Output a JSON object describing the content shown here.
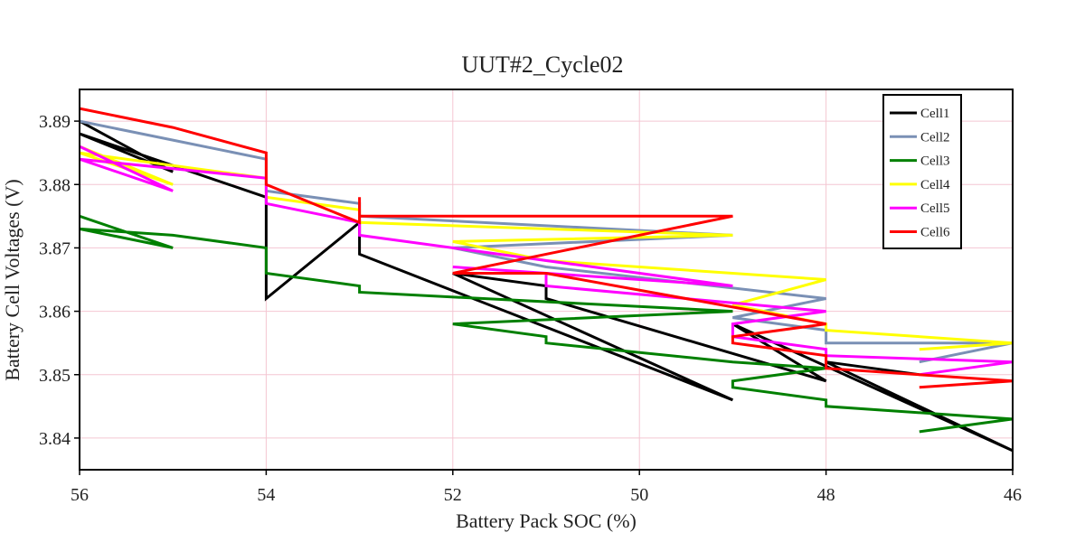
{
  "chart_data": {
    "type": "line",
    "title": "UUT#2_Cycle02",
    "xlabel": "Battery Pack SOC (%)",
    "ylabel": "Battery Cell Voltages (V)",
    "xlim": [
      56,
      46
    ],
    "ylim": [
      3.835,
      3.895
    ],
    "xticks": [
      56,
      54,
      52,
      50,
      48,
      46
    ],
    "yticks": [
      3.84,
      3.85,
      3.86,
      3.87,
      3.88,
      3.89
    ],
    "grid": true,
    "grid_color": "#f4c6d2",
    "legend_position": "top-right",
    "series": [
      {
        "name": "Cell1",
        "color": "#000000",
        "points": [
          [
            56,
            3.89
          ],
          [
            55,
            3.882
          ],
          [
            56,
            3.888
          ],
          [
            54,
            3.878
          ],
          [
            54,
            3.862
          ],
          [
            53,
            3.874
          ],
          [
            53,
            3.869
          ],
          [
            49,
            3.846
          ],
          [
            52,
            3.866
          ],
          [
            51,
            3.864
          ],
          [
            51,
            3.862
          ],
          [
            48,
            3.849
          ],
          [
            49,
            3.858
          ],
          [
            46,
            3.838
          ],
          [
            48,
            3.852
          ],
          [
            47,
            3.85
          ]
        ]
      },
      {
        "name": "Cell2",
        "color": "#7a90b5",
        "points": [
          [
            56,
            3.89
          ],
          [
            55,
            3.887
          ],
          [
            54,
            3.884
          ],
          [
            54,
            3.879
          ],
          [
            53,
            3.877
          ],
          [
            53,
            3.875
          ],
          [
            49,
            3.872
          ],
          [
            52,
            3.87
          ],
          [
            51,
            3.867
          ],
          [
            48,
            3.862
          ],
          [
            49,
            3.859
          ],
          [
            48,
            3.857
          ],
          [
            48,
            3.855
          ],
          [
            46,
            3.855
          ],
          [
            47,
            3.852
          ]
        ]
      },
      {
        "name": "Cell3",
        "color": "#008000",
        "points": [
          [
            56,
            3.875
          ],
          [
            55,
            3.87
          ],
          [
            56,
            3.873
          ],
          [
            55,
            3.872
          ],
          [
            54,
            3.87
          ],
          [
            54,
            3.866
          ],
          [
            53,
            3.864
          ],
          [
            53,
            3.863
          ],
          [
            49,
            3.86
          ],
          [
            52,
            3.858
          ],
          [
            51,
            3.856
          ],
          [
            51,
            3.855
          ],
          [
            49,
            3.852
          ],
          [
            48,
            3.851
          ],
          [
            49,
            3.849
          ],
          [
            49,
            3.848
          ],
          [
            48,
            3.846
          ],
          [
            48,
            3.845
          ],
          [
            46,
            3.843
          ],
          [
            47,
            3.841
          ]
        ]
      },
      {
        "name": "Cell4",
        "color": "#ffff00",
        "points": [
          [
            56,
            3.886
          ],
          [
            55,
            3.88
          ],
          [
            56,
            3.885
          ],
          [
            54,
            3.881
          ],
          [
            54,
            3.878
          ],
          [
            53,
            3.876
          ],
          [
            53,
            3.874
          ],
          [
            49,
            3.872
          ],
          [
            52,
            3.871
          ],
          [
            51,
            3.868
          ],
          [
            48,
            3.865
          ],
          [
            49,
            3.861
          ],
          [
            48,
            3.858
          ],
          [
            48,
            3.857
          ],
          [
            46,
            3.855
          ],
          [
            47,
            3.854
          ]
        ]
      },
      {
        "name": "Cell5",
        "color": "#ff00ff",
        "points": [
          [
            56,
            3.886
          ],
          [
            55,
            3.879
          ],
          [
            56,
            3.884
          ],
          [
            54,
            3.881
          ],
          [
            54,
            3.877
          ],
          [
            53,
            3.874
          ],
          [
            53,
            3.872
          ],
          [
            49,
            3.864
          ],
          [
            52,
            3.867
          ],
          [
            51,
            3.866
          ],
          [
            51,
            3.864
          ],
          [
            48,
            3.86
          ],
          [
            49,
            3.858
          ],
          [
            49,
            3.856
          ],
          [
            48,
            3.854
          ],
          [
            48,
            3.853
          ],
          [
            46,
            3.852
          ],
          [
            47,
            3.85
          ]
        ]
      },
      {
        "name": "Cell6",
        "color": "#ff0000",
        "points": [
          [
            56,
            3.892
          ],
          [
            55,
            3.889
          ],
          [
            54,
            3.885
          ],
          [
            54,
            3.88
          ],
          [
            53,
            3.874
          ],
          [
            53,
            3.878
          ],
          [
            53,
            3.875
          ],
          [
            49,
            3.875
          ],
          [
            52,
            3.866
          ],
          [
            51,
            3.866
          ],
          [
            48,
            3.858
          ],
          [
            49,
            3.856
          ],
          [
            49,
            3.855
          ],
          [
            48,
            3.853
          ],
          [
            48,
            3.851
          ],
          [
            46,
            3.849
          ],
          [
            47,
            3.848
          ]
        ]
      }
    ]
  }
}
